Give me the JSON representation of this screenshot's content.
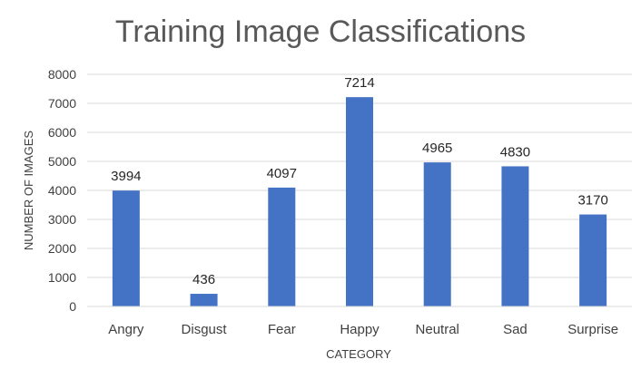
{
  "chart_data": {
    "type": "bar",
    "title": "Training Image Classifications",
    "xlabel": "CATEGORY",
    "ylabel": "NUMBER OF IMAGES",
    "categories": [
      "Angry",
      "Disgust",
      "Fear",
      "Happy",
      "Neutral",
      "Sad",
      "Surprise"
    ],
    "values": [
      3994,
      436,
      4097,
      7214,
      4965,
      4830,
      3170
    ],
    "data_labels": [
      "3994",
      "436",
      "4097",
      "7214",
      "4965",
      "4830",
      "3170"
    ],
    "ylim": [
      0,
      8000
    ],
    "yticks": [
      "0",
      "1000",
      "2000",
      "3000",
      "4000",
      "5000",
      "6000",
      "7000",
      "8000"
    ],
    "grid": true,
    "legend": "none",
    "colors": {
      "bar": "#4472C4",
      "grid": "#d9d9d9",
      "axis": "#d9d9d9"
    }
  }
}
